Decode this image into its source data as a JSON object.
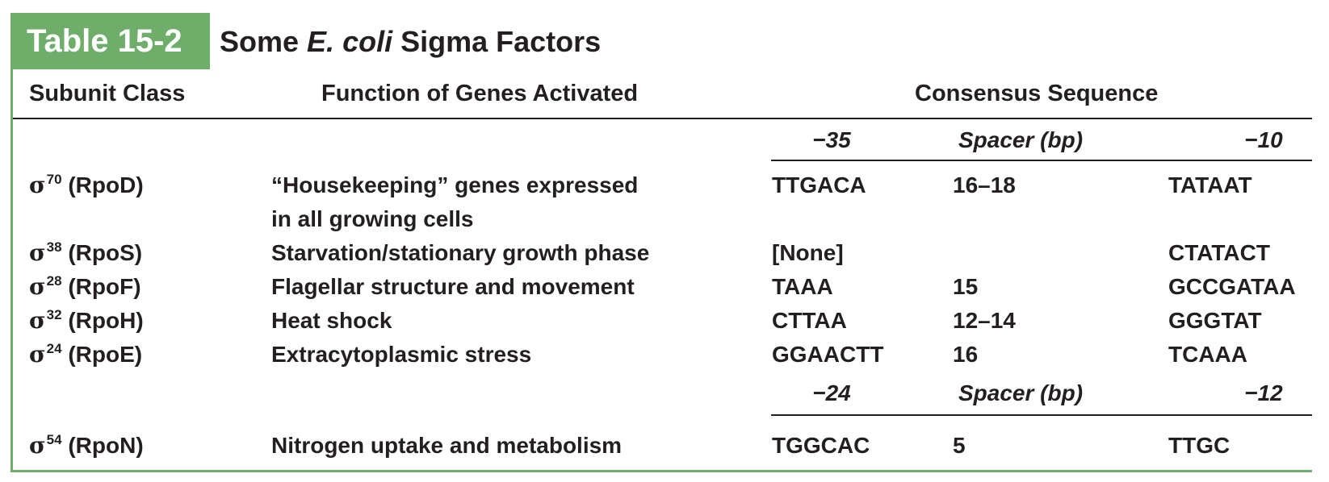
{
  "table": {
    "label": "Table 15-2",
    "title_pre": "Some ",
    "title_italic": "E. coli",
    "title_post": " Sigma Factors"
  },
  "headers": {
    "subunit": "Subunit Class",
    "function": "Function of Genes Activated",
    "consensus": "Consensus Sequence"
  },
  "subheaders": [
    {
      "left": "−35",
      "middle": "Spacer (bp)",
      "right": "−10"
    },
    {
      "left": "−24",
      "middle": "Spacer (bp)",
      "right": "−12"
    }
  ],
  "rows": [
    {
      "sigma": "σ",
      "sup": "70",
      "gene": " (RpoD)",
      "function": [
        "“Housekeeping” genes expressed",
        "in all growing cells"
      ],
      "minus35": "TTGACA",
      "spacer": "16–18",
      "minus10": "TATAAT"
    },
    {
      "sigma": "σ",
      "sup": "38",
      "gene": " (RpoS)",
      "function": [
        "Starvation/stationary growth phase"
      ],
      "minus35": "[None]",
      "spacer": "",
      "minus10": "CTATACT"
    },
    {
      "sigma": "σ",
      "sup": "28",
      "gene": " (RpoF)",
      "function": [
        "Flagellar structure and movement"
      ],
      "minus35": "TAAA",
      "spacer": "15",
      "minus10": "GCCGATAA"
    },
    {
      "sigma": "σ",
      "sup": "32",
      "gene": " (RpoH)",
      "function": [
        "Heat shock"
      ],
      "minus35": "CTTAA",
      "spacer": "12–14",
      "minus10": "GGGTAT"
    },
    {
      "sigma": "σ",
      "sup": "24",
      "gene": " (RpoE)",
      "function": [
        "Extracytoplasmic stress"
      ],
      "minus35": "GGAACTT",
      "spacer": "16",
      "minus10": "TCAAA"
    },
    {
      "sigma": "σ",
      "sup": "54",
      "gene": " (RpoN)",
      "function": [
        "Nitrogen uptake and metabolism"
      ],
      "minus35": "TGGCAC",
      "spacer": "5",
      "minus10": "TTGC"
    }
  ],
  "colors": {
    "accent_green": "#6fae6a",
    "text": "#231f20",
    "label_text": "#ffffff"
  }
}
